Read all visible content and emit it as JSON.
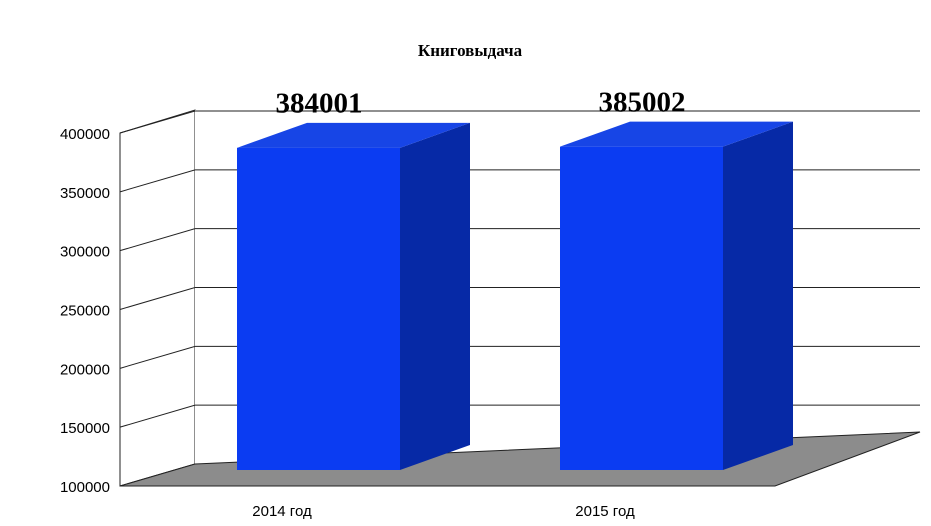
{
  "chart_data": {
    "type": "bar",
    "title": "Книговыдача",
    "categories": [
      "2014 год",
      "2015 год"
    ],
    "values": [
      384001,
      385002
    ],
    "color": "#0b3cf2",
    "ylim": [
      100000,
      400000
    ],
    "yticks": [
      100000,
      150000,
      200000,
      250000,
      300000,
      350000,
      400000
    ],
    "grid": true
  }
}
